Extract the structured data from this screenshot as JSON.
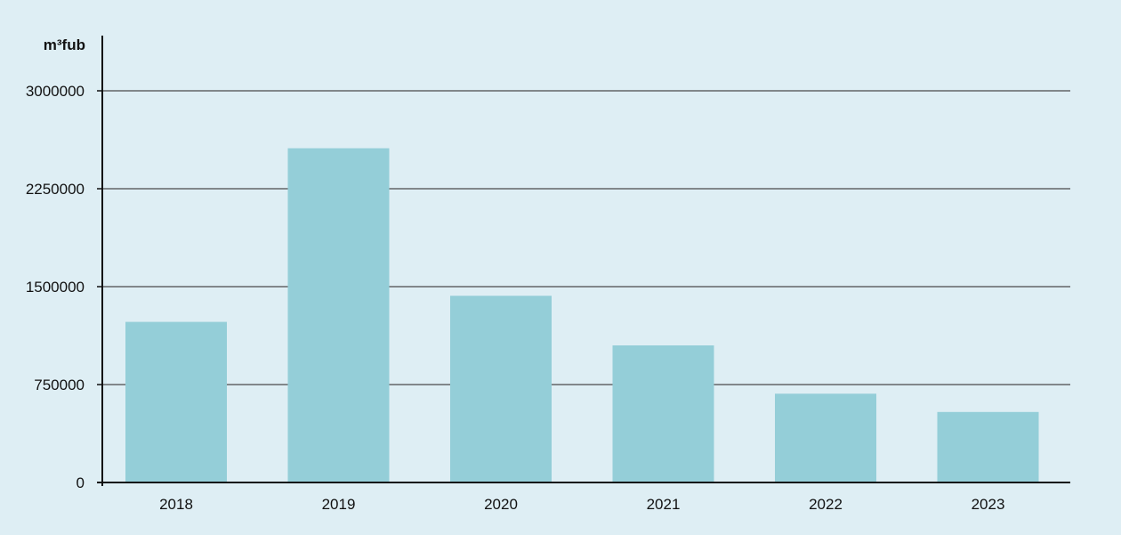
{
  "chart_data": {
    "type": "bar",
    "title": "",
    "xlabel": "",
    "ylabel": "m³fub",
    "categories": [
      "2018",
      "2019",
      "2020",
      "2021",
      "2022",
      "2023"
    ],
    "values": [
      1230000,
      2560000,
      1430000,
      1050000,
      680000,
      540000
    ],
    "ylim": [
      0,
      3000000
    ],
    "yticks": [
      0,
      750000,
      1500000,
      2250000,
      3000000
    ],
    "ytick_labels": [
      "0",
      "750000",
      "1500000",
      "2250000",
      "3000000"
    ],
    "grid": true,
    "colors": {
      "bar": "#94ced8",
      "background": "#deeef4",
      "grid": "#4a4a4a",
      "axis": "#111111"
    }
  }
}
